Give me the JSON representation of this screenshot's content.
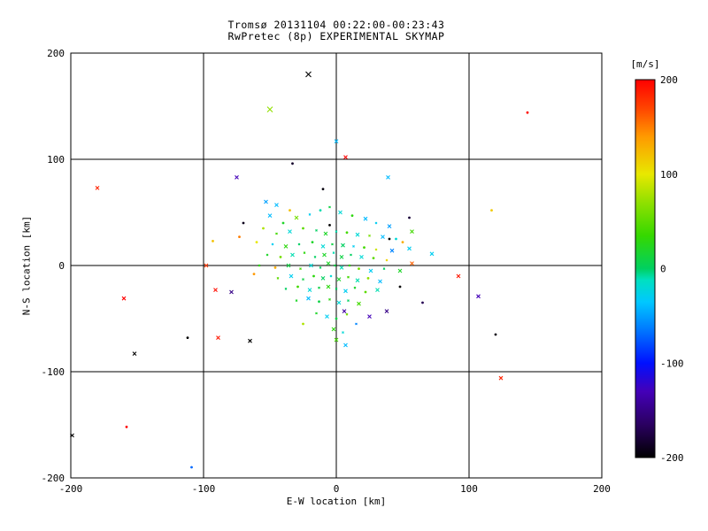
{
  "chart_data": {
    "type": "scatter",
    "title_line1": "Tromsø 20131104 00:22:00-00:23:43",
    "title_line2": "RwPretec (8p) EXPERIMENTAL SKYMAP",
    "xlabel": "E-W location [km]",
    "ylabel": "N-S location [km]",
    "xlim": [
      -200,
      200
    ],
    "ylim": [
      -200,
      200
    ],
    "xticks": [
      -200,
      -100,
      0,
      100,
      200
    ],
    "yticks": [
      -200,
      -100,
      0,
      100,
      200
    ],
    "grid": true,
    "grid_lines_x": [
      -100,
      0,
      100
    ],
    "grid_lines_y": [
      -100,
      0,
      100
    ],
    "colorbar": {
      "label": "[m/s]",
      "units": "m/s",
      "min": -200,
      "max": 200,
      "ticks": [
        200,
        100,
        0,
        -100,
        -200
      ],
      "stops": [
        [
          -200,
          "#000000"
        ],
        [
          -165,
          "#2a0060"
        ],
        [
          -130,
          "#4400b8"
        ],
        [
          -100,
          "#0010ff"
        ],
        [
          -65,
          "#0077ff"
        ],
        [
          -35,
          "#00c8ff"
        ],
        [
          -12,
          "#00e0c0"
        ],
        [
          0,
          "#00d060"
        ],
        [
          35,
          "#35d800"
        ],
        [
          70,
          "#90e000"
        ],
        [
          100,
          "#e8e800"
        ],
        [
          140,
          "#ff9900"
        ],
        [
          170,
          "#ff4400"
        ],
        [
          200,
          "#ff0000"
        ]
      ]
    },
    "points_format": [
      "x_km",
      "y_km",
      "velocity_ms",
      "size",
      "marker(x|d)"
    ],
    "points": [
      [
        -21,
        180,
        -200,
        3,
        "x"
      ],
      [
        -50,
        147,
        70,
        3,
        "x"
      ],
      [
        144,
        144,
        195,
        1,
        "d"
      ],
      [
        -180,
        73,
        185,
        2,
        "x"
      ],
      [
        0,
        117,
        -40,
        2,
        "x"
      ],
      [
        7,
        102,
        200,
        2,
        "x"
      ],
      [
        -33,
        96,
        -185,
        1,
        "d"
      ],
      [
        39,
        83,
        -40,
        2,
        "x"
      ],
      [
        -75,
        83,
        -130,
        2,
        "x"
      ],
      [
        -10,
        72,
        -195,
        1,
        "d"
      ],
      [
        -53,
        60,
        -50,
        2,
        "x"
      ],
      [
        117,
        52,
        115,
        1,
        "d"
      ],
      [
        -45,
        57,
        -40,
        2,
        "x"
      ],
      [
        -73,
        27,
        150,
        1,
        "d"
      ],
      [
        -93,
        23,
        120,
        1,
        "d"
      ],
      [
        57,
        32,
        40,
        2,
        "x"
      ],
      [
        40,
        25,
        -200,
        1,
        "d"
      ],
      [
        72,
        11,
        -30,
        2,
        "x"
      ],
      [
        -98,
        0,
        175,
        2,
        "x"
      ],
      [
        57,
        2,
        160,
        2,
        "x"
      ],
      [
        92,
        -10,
        190,
        2,
        "x"
      ],
      [
        -79,
        -25,
        -150,
        2,
        "x"
      ],
      [
        -91,
        -23,
        195,
        2,
        "x"
      ],
      [
        107,
        -29,
        -130,
        2,
        "x"
      ],
      [
        6,
        -43,
        -140,
        2,
        "x"
      ],
      [
        38,
        -43,
        -150,
        2,
        "x"
      ],
      [
        7,
        -75,
        -40,
        2,
        "x"
      ],
      [
        -65,
        -71,
        -200,
        2,
        "x"
      ],
      [
        -89,
        -68,
        190,
        2,
        "x"
      ],
      [
        -112,
        -68,
        -200,
        1,
        "d"
      ],
      [
        120,
        -65,
        -195,
        1,
        "d"
      ],
      [
        -152,
        -83,
        -200,
        2,
        "x"
      ],
      [
        124,
        -106,
        185,
        2,
        "x"
      ],
      [
        -158,
        -152,
        200,
        1,
        "d"
      ],
      [
        -199,
        -160,
        -200,
        2,
        "x"
      ],
      [
        -109,
        -190,
        -70,
        1,
        "d"
      ],
      [
        -160,
        -31,
        200,
        2,
        "x"
      ],
      [
        -50,
        47,
        -40,
        2,
        "x"
      ],
      [
        -40,
        40,
        20,
        1,
        "d"
      ],
      [
        -30,
        45,
        60,
        2,
        "x"
      ],
      [
        -20,
        48,
        -30,
        1,
        "x"
      ],
      [
        -12,
        52,
        -10,
        1,
        "d"
      ],
      [
        -5,
        55,
        10,
        1,
        "x"
      ],
      [
        3,
        50,
        -20,
        2,
        "x"
      ],
      [
        12,
        47,
        30,
        1,
        "d"
      ],
      [
        22,
        44,
        -40,
        2,
        "x"
      ],
      [
        30,
        40,
        -30,
        1,
        "x"
      ],
      [
        40,
        37,
        -50,
        2,
        "x"
      ],
      [
        -55,
        35,
        80,
        1,
        "d"
      ],
      [
        -45,
        30,
        40,
        1,
        "x"
      ],
      [
        -35,
        32,
        -20,
        2,
        "x"
      ],
      [
        -25,
        35,
        50,
        1,
        "d"
      ],
      [
        -15,
        33,
        0,
        1,
        "x"
      ],
      [
        -8,
        30,
        20,
        2,
        "x"
      ],
      [
        0,
        32,
        -10,
        1,
        "x"
      ],
      [
        8,
        31,
        40,
        1,
        "d"
      ],
      [
        16,
        29,
        -20,
        2,
        "x"
      ],
      [
        25,
        28,
        60,
        1,
        "x"
      ],
      [
        35,
        27,
        -40,
        2,
        "x"
      ],
      [
        45,
        25,
        -20,
        1,
        "d"
      ],
      [
        -60,
        22,
        100,
        1,
        "d"
      ],
      [
        -48,
        20,
        -30,
        1,
        "x"
      ],
      [
        -38,
        18,
        30,
        2,
        "x"
      ],
      [
        -28,
        20,
        0,
        1,
        "x"
      ],
      [
        -18,
        22,
        20,
        1,
        "d"
      ],
      [
        -10,
        18,
        -20,
        2,
        "x"
      ],
      [
        -3,
        20,
        10,
        1,
        "x"
      ],
      [
        5,
        19,
        0,
        2,
        "x"
      ],
      [
        13,
        18,
        -30,
        1,
        "x"
      ],
      [
        21,
        17,
        40,
        1,
        "d"
      ],
      [
        30,
        15,
        90,
        1,
        "x"
      ],
      [
        42,
        14,
        -60,
        2,
        "x"
      ],
      [
        55,
        16,
        -30,
        2,
        "x"
      ],
      [
        -52,
        10,
        20,
        1,
        "x"
      ],
      [
        -42,
        8,
        60,
        1,
        "d"
      ],
      [
        -33,
        10,
        -10,
        2,
        "x"
      ],
      [
        -24,
        12,
        30,
        1,
        "x"
      ],
      [
        -16,
        8,
        0,
        1,
        "x"
      ],
      [
        -9,
        10,
        20,
        2,
        "x"
      ],
      [
        -2,
        12,
        -10,
        1,
        "x"
      ],
      [
        4,
        8,
        10,
        2,
        "x"
      ],
      [
        11,
        10,
        0,
        1,
        "x"
      ],
      [
        19,
        8,
        -20,
        2,
        "x"
      ],
      [
        28,
        7,
        50,
        1,
        "d"
      ],
      [
        38,
        5,
        110,
        1,
        "x"
      ],
      [
        -58,
        0,
        30,
        1,
        "x"
      ],
      [
        -46,
        -2,
        130,
        1,
        "d"
      ],
      [
        -36,
        0,
        10,
        2,
        "x"
      ],
      [
        -27,
        -3,
        40,
        1,
        "x"
      ],
      [
        -19,
        0,
        -20,
        2,
        "x"
      ],
      [
        -12,
        -2,
        0,
        1,
        "x"
      ],
      [
        -6,
        2,
        20,
        2,
        "x"
      ],
      [
        -1,
        0,
        10,
        1,
        "x"
      ],
      [
        4,
        -2,
        -10,
        2,
        "x"
      ],
      [
        10,
        0,
        30,
        1,
        "x"
      ],
      [
        17,
        -3,
        60,
        1,
        "d"
      ],
      [
        26,
        -5,
        -30,
        2,
        "x"
      ],
      [
        36,
        -3,
        0,
        1,
        "x"
      ],
      [
        48,
        -5,
        20,
        2,
        "x"
      ],
      [
        -44,
        -12,
        50,
        1,
        "x"
      ],
      [
        -34,
        -10,
        -30,
        2,
        "x"
      ],
      [
        -25,
        -13,
        10,
        1,
        "x"
      ],
      [
        -17,
        -10,
        30,
        1,
        "d"
      ],
      [
        -10,
        -12,
        0,
        2,
        "x"
      ],
      [
        -4,
        -10,
        -20,
        1,
        "x"
      ],
      [
        2,
        -13,
        20,
        2,
        "x"
      ],
      [
        9,
        -11,
        40,
        1,
        "x"
      ],
      [
        16,
        -14,
        -10,
        2,
        "x"
      ],
      [
        24,
        -12,
        70,
        1,
        "d"
      ],
      [
        33,
        -15,
        -40,
        2,
        "x"
      ],
      [
        -38,
        -22,
        0,
        1,
        "x"
      ],
      [
        -29,
        -20,
        40,
        1,
        "d"
      ],
      [
        -20,
        -23,
        -20,
        2,
        "x"
      ],
      [
        -13,
        -21,
        10,
        1,
        "x"
      ],
      [
        -6,
        -20,
        30,
        2,
        "x"
      ],
      [
        0,
        -22,
        0,
        1,
        "x"
      ],
      [
        7,
        -24,
        -30,
        2,
        "x"
      ],
      [
        14,
        -21,
        20,
        1,
        "x"
      ],
      [
        22,
        -25,
        50,
        1,
        "d"
      ],
      [
        31,
        -23,
        -10,
        2,
        "x"
      ],
      [
        -30,
        -33,
        20,
        1,
        "x"
      ],
      [
        -21,
        -31,
        -40,
        2,
        "x"
      ],
      [
        -13,
        -34,
        10,
        1,
        "d"
      ],
      [
        -5,
        -32,
        30,
        1,
        "x"
      ],
      [
        2,
        -35,
        -20,
        2,
        "x"
      ],
      [
        9,
        -33,
        0,
        1,
        "x"
      ],
      [
        17,
        -36,
        40,
        2,
        "x"
      ],
      [
        -15,
        -45,
        20,
        1,
        "x"
      ],
      [
        -7,
        -48,
        -30,
        2,
        "x"
      ],
      [
        0,
        -50,
        10,
        1,
        "d"
      ],
      [
        8,
        -46,
        60,
        1,
        "x"
      ],
      [
        -2,
        -60,
        30,
        2,
        "x"
      ],
      [
        5,
        -63,
        -20,
        1,
        "x"
      ],
      [
        0,
        -70,
        40,
        2,
        "x"
      ],
      [
        -25,
        -55,
        80,
        1,
        "d"
      ],
      [
        15,
        -55,
        -60,
        1,
        "x"
      ],
      [
        25,
        -48,
        -130,
        2,
        "x"
      ],
      [
        -70,
        40,
        -190,
        1,
        "d"
      ],
      [
        55,
        45,
        -180,
        1,
        "d"
      ],
      [
        -5,
        38,
        -200,
        1,
        "d"
      ],
      [
        48,
        -20,
        -200,
        1,
        "d"
      ],
      [
        65,
        -35,
        -170,
        1,
        "d"
      ],
      [
        -62,
        -8,
        140,
        1,
        "d"
      ],
      [
        50,
        22,
        130,
        1,
        "d"
      ],
      [
        -35,
        52,
        120,
        1,
        "d"
      ]
    ]
  }
}
